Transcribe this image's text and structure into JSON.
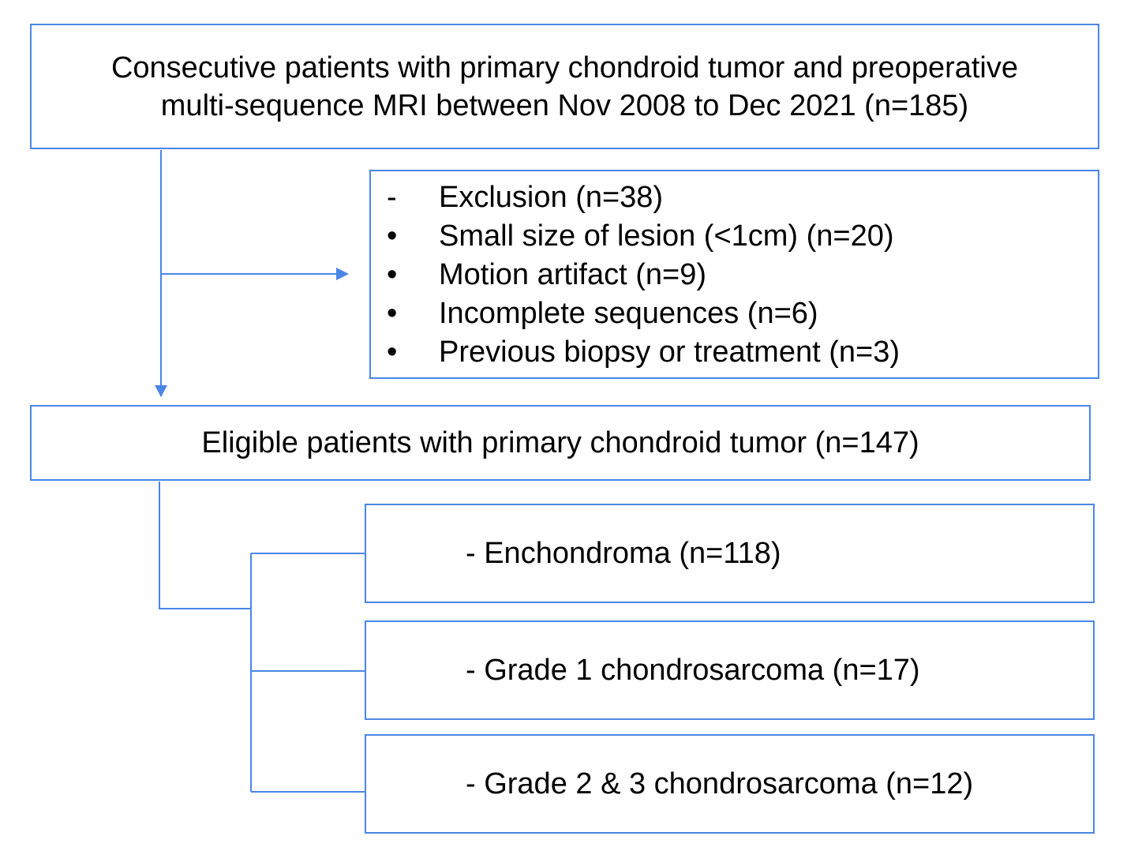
{
  "top_box": {
    "line1": "Consecutive patients with primary chondroid tumor and preoperative",
    "line2": "multi-sequence MRI between Nov 2008 to Dec 2021 (n=185)"
  },
  "exclusion": {
    "items": [
      {
        "marker": "-",
        "text": "Exclusion (n=38)"
      },
      {
        "marker": "•",
        "text": "Small size of lesion (<1cm) (n=20)"
      },
      {
        "marker": "•",
        "text": "Motion artifact (n=9)"
      },
      {
        "marker": "•",
        "text": "Incomplete sequences (n=6)"
      },
      {
        "marker": "•",
        "text": "Previous biopsy or treatment (n=3)"
      }
    ]
  },
  "eligible": {
    "text": "Eligible patients with primary chondroid tumor (n=147)"
  },
  "subgroups": [
    {
      "text": "- Enchondroma (n=118)"
    },
    {
      "text": "- Grade 1 chondrosarcoma (n=17)"
    },
    {
      "text": "- Grade 2 & 3 chondrosarcoma (n=12)"
    }
  ],
  "colors": {
    "border": "#4a86e8",
    "connector": "#4a86e8"
  }
}
